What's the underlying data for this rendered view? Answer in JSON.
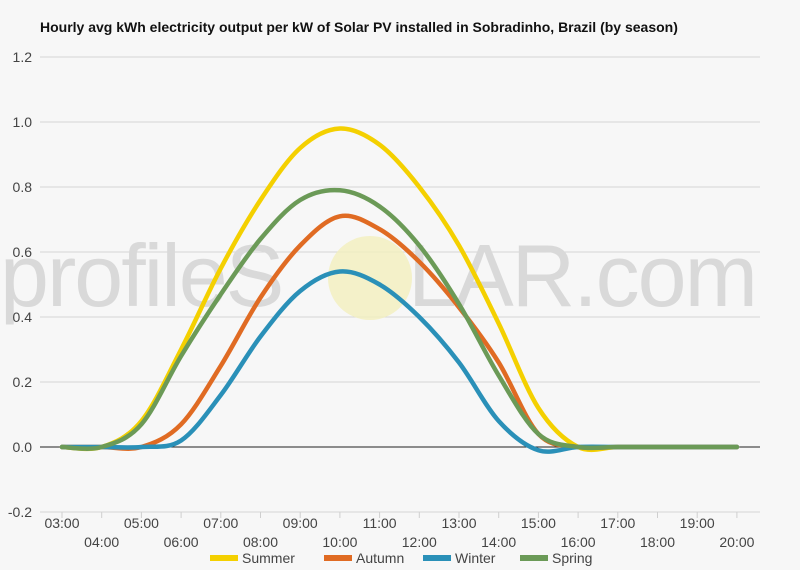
{
  "chart_data": {
    "type": "line",
    "title": "Hourly avg kWh electricity output per kW of Solar PV installed in Sobradinho, Brazil (by season)",
    "xlabel": "",
    "ylabel": "",
    "ylim": [
      -0.2,
      1.2
    ],
    "yticks": [
      "-0.2",
      "0.0",
      "0.2",
      "0.4",
      "0.6",
      "0.8",
      "1.0",
      "1.2"
    ],
    "categories": [
      "03:00",
      "04:00",
      "05:00",
      "06:00",
      "07:00",
      "08:00",
      "09:00",
      "10:00",
      "11:00",
      "12:00",
      "13:00",
      "14:00",
      "15:00",
      "16:00",
      "17:00",
      "18:00",
      "19:00",
      "20:00"
    ],
    "grid": true,
    "legend_position": "bottom",
    "series": [
      {
        "name": "Summer",
        "color": "#f4d000",
        "values": [
          0.0,
          0.0,
          0.08,
          0.3,
          0.55,
          0.76,
          0.92,
          0.98,
          0.93,
          0.8,
          0.62,
          0.38,
          0.12,
          0.0,
          0.0,
          0.0,
          0.0,
          0.0
        ]
      },
      {
        "name": "Autumn",
        "color": "#e06b23",
        "values": [
          0.0,
          0.0,
          0.0,
          0.07,
          0.25,
          0.46,
          0.62,
          0.71,
          0.67,
          0.57,
          0.43,
          0.26,
          0.04,
          0.0,
          0.0,
          0.0,
          0.0,
          0.0
        ]
      },
      {
        "name": "Winter",
        "color": "#2a90b8",
        "values": [
          0.0,
          0.0,
          0.0,
          0.02,
          0.16,
          0.34,
          0.48,
          0.54,
          0.5,
          0.4,
          0.26,
          0.08,
          -0.01,
          0.0,
          0.0,
          0.0,
          0.0,
          0.0
        ]
      },
      {
        "name": "Spring",
        "color": "#6b9a57",
        "values": [
          0.0,
          0.0,
          0.07,
          0.28,
          0.47,
          0.64,
          0.76,
          0.79,
          0.74,
          0.62,
          0.44,
          0.22,
          0.04,
          0.0,
          0.0,
          0.0,
          0.0,
          0.0
        ]
      }
    ]
  },
  "watermark": {
    "left": "profileS",
    "right": "LAR.com"
  }
}
